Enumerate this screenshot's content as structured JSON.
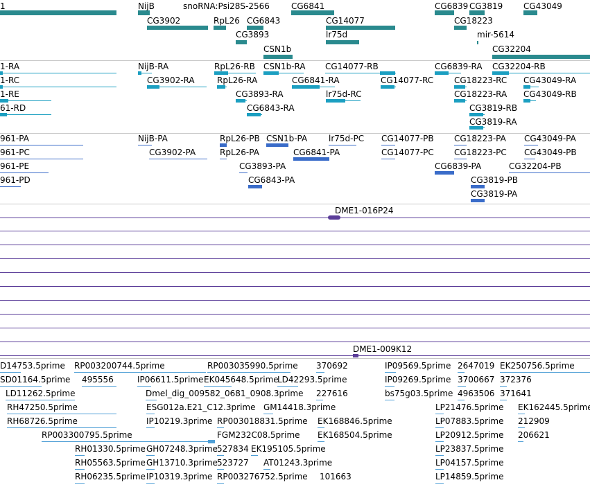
{
  "colors": {
    "gene": "#2a8a8e",
    "transcript_ra": "#1b9fc1",
    "protein": "#3a6cc9",
    "clone": "#5a3c98",
    "est": "#4f9fd6",
    "est_arrow": "#7fb7e6"
  },
  "tracks": {
    "genes": [
      {
        "label": "1"
      },
      {
        "label": "NijB"
      },
      {
        "label": "snoRNA:Psi28S-2566"
      },
      {
        "label": "CG6841"
      },
      {
        "label": "CG6839"
      },
      {
        "label": "CG3819"
      },
      {
        "label": "CG43049"
      },
      {
        "label": "CG3902"
      },
      {
        "label": "RpL26"
      },
      {
        "label": "CG6843"
      },
      {
        "label": "CG14077"
      },
      {
        "label": "CG18223"
      },
      {
        "label": "CG3893"
      },
      {
        "label": "lr75d"
      },
      {
        "label": "mir-5614"
      },
      {
        "label": "CSN1b"
      },
      {
        "label": "CG32204"
      }
    ],
    "transcripts": [
      {
        "label": "1-RA"
      },
      {
        "label": "NijB-RA"
      },
      {
        "label": "RpL26-RB"
      },
      {
        "label": "CSN1b-RA"
      },
      {
        "label": "CG14077-RB"
      },
      {
        "label": "CG6839-RA"
      },
      {
        "label": "CG32204-RB"
      },
      {
        "label": "1-RC"
      },
      {
        "label": "CG3902-RA"
      },
      {
        "label": "RpL26-RA"
      },
      {
        "label": "CG6841-RA"
      },
      {
        "label": "CG14077-RC"
      },
      {
        "label": "CG18223-RC"
      },
      {
        "label": "CG43049-RA"
      },
      {
        "label": "1-RE"
      },
      {
        "label": "CG3893-RA"
      },
      {
        "label": "lr75d-RC"
      },
      {
        "label": "CG18223-RA"
      },
      {
        "label": "CG43049-RB"
      },
      {
        "label": "61-RD"
      },
      {
        "label": "CG6843-RA"
      },
      {
        "label": "CG3819-RB"
      },
      {
        "label": "CG3819-RA"
      }
    ],
    "proteins": [
      {
        "label": "961-PA"
      },
      {
        "label": "NijB-PA"
      },
      {
        "label": "RpL26-PB"
      },
      {
        "label": "CSN1b-PA"
      },
      {
        "label": "lr75d-PC"
      },
      {
        "label": "CG14077-PB"
      },
      {
        "label": "CG18223-PA"
      },
      {
        "label": "CG43049-PA"
      },
      {
        "label": "961-PC"
      },
      {
        "label": "CG3902-PA"
      },
      {
        "label": "RpL26-PA"
      },
      {
        "label": "CG6841-PA"
      },
      {
        "label": "CG14077-PC"
      },
      {
        "label": "CG18223-PC"
      },
      {
        "label": "CG43049-PB"
      },
      {
        "label": "961-PE"
      },
      {
        "label": "CG3893-PA"
      },
      {
        "label": "CG6839-PA"
      },
      {
        "label": "CG32204-PB"
      },
      {
        "label": "961-PD"
      },
      {
        "label": "CG6843-PA"
      },
      {
        "label": "CG3819-PB"
      },
      {
        "label": "CG3819-PA"
      }
    ],
    "clones": [
      {
        "label": "DME1-016P24"
      },
      {
        "label": "DME1-009K12"
      }
    ],
    "ests": [
      {
        "label": "D14753.5prime"
      },
      {
        "label": "RP003200744.5prime"
      },
      {
        "label": "RP003035990.5prime"
      },
      {
        "label": "370692"
      },
      {
        "label": "IP09569.5prime"
      },
      {
        "label": "2647019"
      },
      {
        "label": "EK250756.5prime"
      },
      {
        "label": "SD01164.5prime"
      },
      {
        "label": "495556"
      },
      {
        "label": "IP06611.5prime"
      },
      {
        "label": "EK045648.5prime"
      },
      {
        "label": "LD42293.5prime"
      },
      {
        "label": "IP09269.5prime"
      },
      {
        "label": "3700667"
      },
      {
        "label": "372376"
      },
      {
        "label": "LD11262.5prime"
      },
      {
        "label": "Dmel_dig_009582_0681_0908.3prime"
      },
      {
        "label": "227616"
      },
      {
        "label": "bs75g03.5prime"
      },
      {
        "label": "4963506"
      },
      {
        "label": "371641"
      },
      {
        "label": "RH47250.5prime"
      },
      {
        "label": "ESG012a.E21_C12.3prime"
      },
      {
        "label": "GM14418.3prime"
      },
      {
        "label": "LP21476.5prime"
      },
      {
        "label": "EK162445.5prime"
      },
      {
        "label": "RH68726.5prime"
      },
      {
        "label": "IP10219.3prime"
      },
      {
        "label": "RP003018831.5prime"
      },
      {
        "label": "EK168846.5prime"
      },
      {
        "label": "LP07883.5prime"
      },
      {
        "label": "212909"
      },
      {
        "label": "RP003300795.5prime"
      },
      {
        "label": "FGM232C08.5prime"
      },
      {
        "label": "EK168504.5prime"
      },
      {
        "label": "LP20912.5prime"
      },
      {
        "label": "206621"
      },
      {
        "label": "RH01330.5prime"
      },
      {
        "label": "GH07248.3prime"
      },
      {
        "label": "527834"
      },
      {
        "label": "EK195105.5prime"
      },
      {
        "label": "LP23837.5prime"
      },
      {
        "label": "RH05563.5prime"
      },
      {
        "label": "GH13710.3prime"
      },
      {
        "label": "523727"
      },
      {
        "label": "AT01243.3prime"
      },
      {
        "label": "LP04157.5prime"
      },
      {
        "label": "RH06235.5prime"
      },
      {
        "label": "IP10319.3prime"
      },
      {
        "label": "RP003276752.5prime"
      },
      {
        "label": "101663"
      },
      {
        "label": "LP14859.5prime"
      }
    ]
  }
}
